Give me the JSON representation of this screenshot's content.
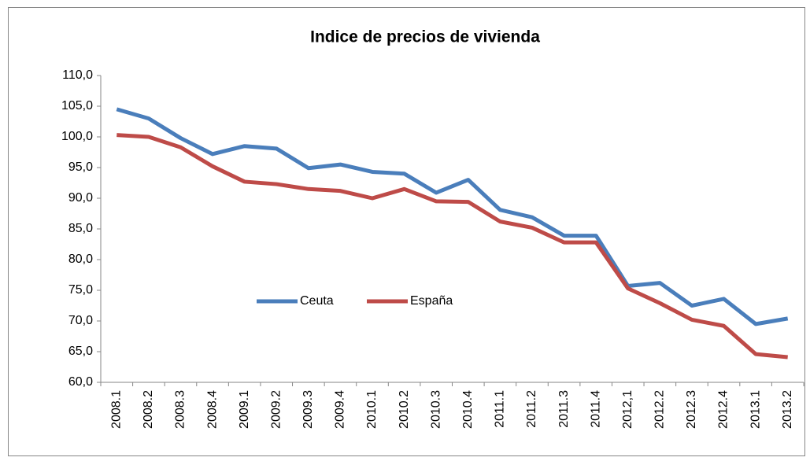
{
  "chart_data": {
    "type": "line",
    "title": "Indice de precios de vivienda",
    "categories": [
      "2008.1",
      "2008.2",
      "2008.3",
      "2008.4",
      "2009.1",
      "2009.2",
      "2009.3",
      "2009.4",
      "2010.1",
      "2010.2",
      "2010.3",
      "2010.4",
      "2011.1",
      "2011.2",
      "2011.3",
      "2011.4",
      "2012,1",
      "2012.2",
      "2012.3",
      "2012.4",
      "2013.1",
      "2013.2"
    ],
    "series": [
      {
        "name": "Ceuta",
        "color": "#4a7ebb",
        "values": [
          104.5,
          103.0,
          99.8,
          97.2,
          98.5,
          98.1,
          94.9,
          95.5,
          94.3,
          94.0,
          90.9,
          93.0,
          88.1,
          86.9,
          83.9,
          83.9,
          75.7,
          76.2,
          72.5,
          73.6,
          69.5,
          70.4
        ]
      },
      {
        "name": "España",
        "color": "#be4b48",
        "values": [
          100.3,
          100.0,
          98.3,
          95.2,
          92.7,
          92.3,
          91.5,
          91.2,
          90.0,
          91.5,
          89.5,
          89.4,
          86.2,
          85.2,
          82.8,
          82.8,
          75.3,
          72.9,
          70.2,
          69.2,
          64.6,
          64.1
        ]
      }
    ],
    "ylim": [
      60,
      110
    ],
    "yticks": [
      {
        "value": 60,
        "label": "60,0"
      },
      {
        "value": 65,
        "label": "65,0"
      },
      {
        "value": 70,
        "label": "70,0"
      },
      {
        "value": 75,
        "label": "75,0"
      },
      {
        "value": 80,
        "label": "80,0"
      },
      {
        "value": 85,
        "label": "85,0"
      },
      {
        "value": 90,
        "label": "90,0"
      },
      {
        "value": 95,
        "label": "95,0"
      },
      {
        "value": 100,
        "label": "100,0"
      },
      {
        "value": 105,
        "label": "105,0"
      },
      {
        "value": 110,
        "label": "110,0"
      }
    ],
    "grid": false,
    "legend": "center"
  }
}
